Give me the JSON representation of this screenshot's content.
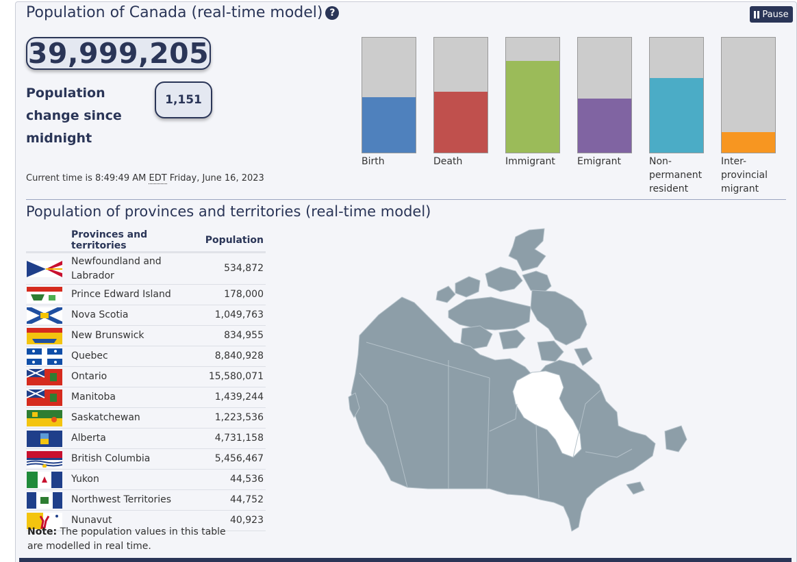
{
  "header": {
    "title": "Population of Canada (real-time model)",
    "help_glyph": "?",
    "pause_label": "Pause"
  },
  "population": {
    "total": "39,999,205",
    "change_label": "Population change since midnight",
    "change_value": "1,151"
  },
  "time": {
    "prefix": "Current time is 8:49:49 AM",
    "zone": "EDT",
    "date": "Friday, June 16, 2023"
  },
  "components": [
    {
      "label": "Birth",
      "level": 0.48,
      "color": "#4f81bd"
    },
    {
      "label": "Death",
      "level": 0.53,
      "color": "#c0504d"
    },
    {
      "label": "Immigrant",
      "level": 0.8,
      "color": "#9bbb59"
    },
    {
      "label": "Emigrant",
      "level": 0.47,
      "color": "#8064a2"
    },
    {
      "label": "Non-permanent resident",
      "level": 0.65,
      "color": "#4bacc6"
    },
    {
      "label": "Inter-provincial migrant",
      "level": 0.18,
      "color": "#f79621"
    }
  ],
  "provinces": {
    "title": "Population of provinces and territories (real-time model)",
    "col_name": "Provinces and territories",
    "col_pop": "Population",
    "rows": [
      {
        "name": "Newfoundland and Labrador",
        "population": "534,872",
        "flag": "newfoundland-flag-icon"
      },
      {
        "name": "Prince Edward Island",
        "population": "178,000",
        "flag": "pei-flag-icon"
      },
      {
        "name": "Nova Scotia",
        "population": "1,049,763",
        "flag": "nova-scotia-flag-icon"
      },
      {
        "name": "New Brunswick",
        "population": "834,955",
        "flag": "new-brunswick-flag-icon"
      },
      {
        "name": "Quebec",
        "population": "8,840,928",
        "flag": "quebec-flag-icon"
      },
      {
        "name": "Ontario",
        "population": "15,580,071",
        "flag": "ontario-flag-icon"
      },
      {
        "name": "Manitoba",
        "population": "1,439,244",
        "flag": "manitoba-flag-icon"
      },
      {
        "name": "Saskatchewan",
        "population": "1,223,536",
        "flag": "saskatchewan-flag-icon"
      },
      {
        "name": "Alberta",
        "population": "4,731,158",
        "flag": "alberta-flag-icon"
      },
      {
        "name": "British Columbia",
        "population": "5,456,467",
        "flag": "british-columbia-flag-icon"
      },
      {
        "name": "Yukon",
        "population": "44,536",
        "flag": "yukon-flag-icon"
      },
      {
        "name": "Northwest Territories",
        "population": "44,752",
        "flag": "nwt-flag-icon"
      },
      {
        "name": "Nunavut",
        "population": "40,923",
        "flag": "nunavut-flag-icon"
      }
    ],
    "note_label": "Note:",
    "note_text": "The population values in this table are modelled in real time."
  },
  "map": {
    "icon": "canada-map",
    "color": "#8d9ea8",
    "border_color": "#b4c1c9"
  }
}
